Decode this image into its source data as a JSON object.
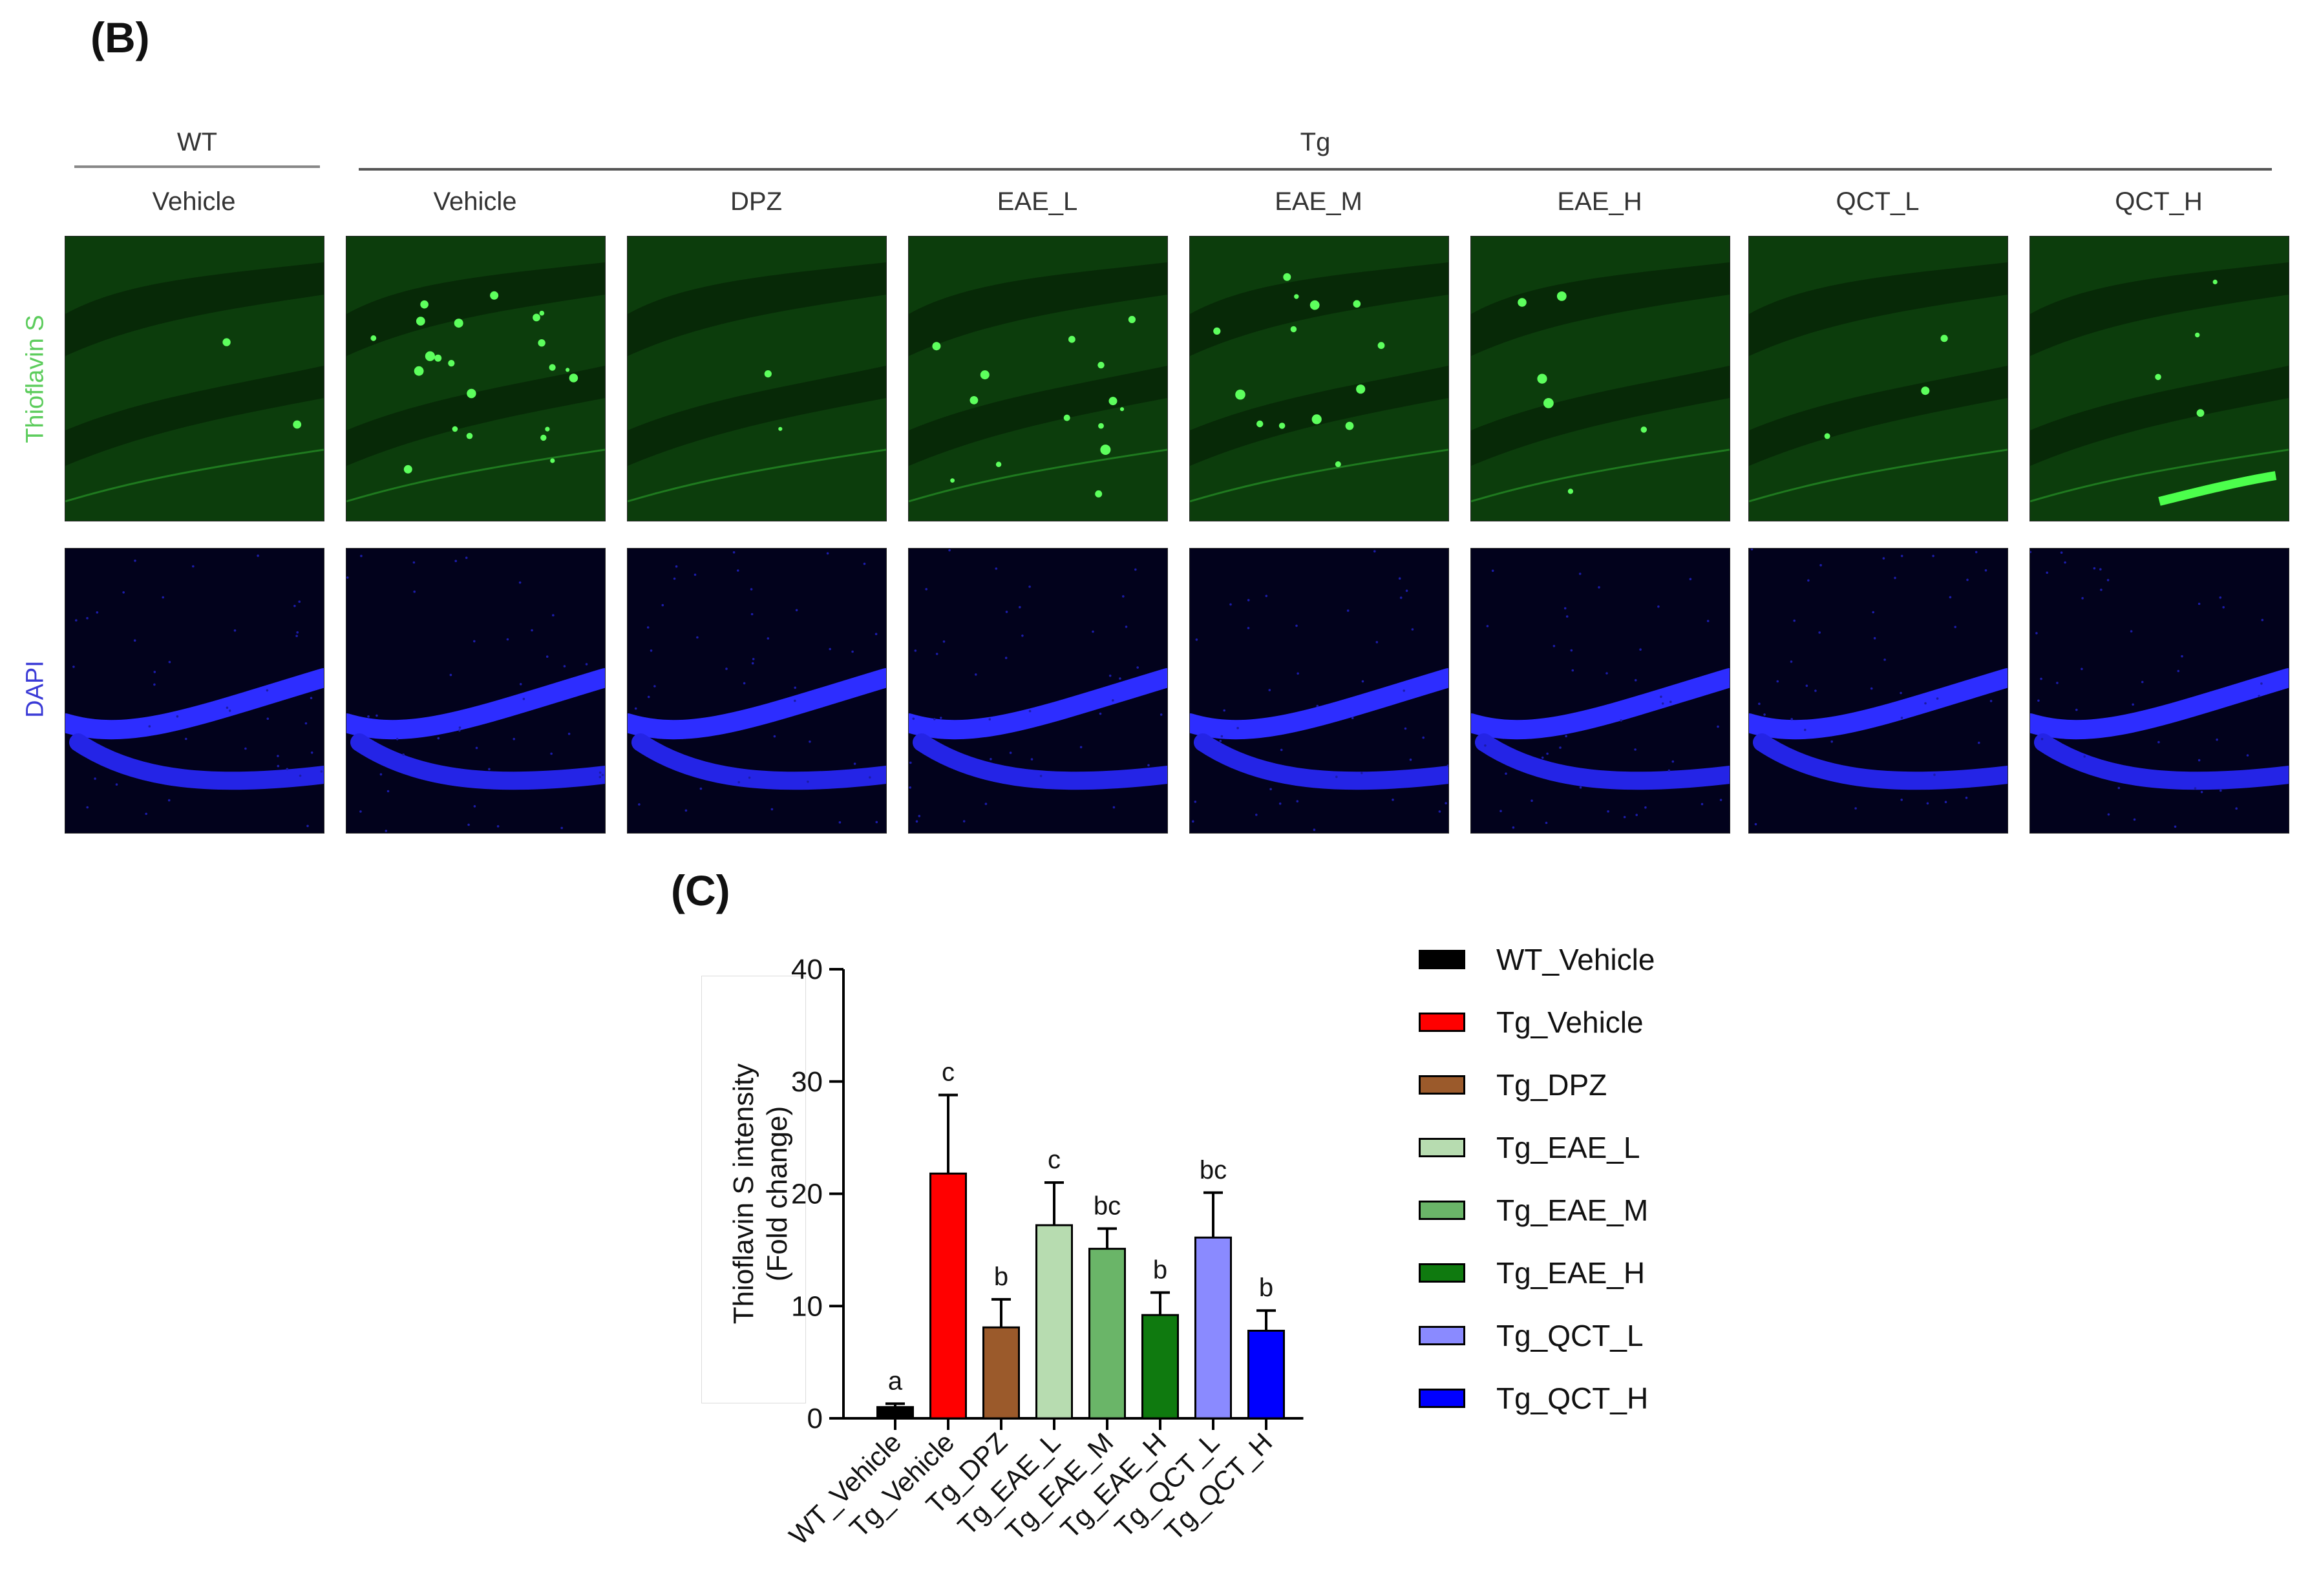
{
  "panel_b": {
    "label": "(B)",
    "groups": [
      {
        "name": "WT"
      },
      {
        "name": "Tg"
      }
    ],
    "columns": [
      "Vehicle",
      "Vehicle",
      "DPZ",
      "EAE_L",
      "EAE_M",
      "EAE_H",
      "QCT_L",
      "QCT_H"
    ],
    "rows": [
      {
        "label": "Thioflavin S",
        "color": "#5ccc5c"
      },
      {
        "label": "DAPI",
        "color": "#3a3ad6"
      }
    ]
  },
  "panel_c": {
    "label": "(C)"
  },
  "chart_data": {
    "type": "bar",
    "ylabel": "Thioflavin S intensity\n(Fold change)",
    "ylabel_lines": [
      "Thioflavin S intensity",
      "(Fold change)"
    ],
    "ylim": [
      0,
      40
    ],
    "yticks": [
      0,
      10,
      20,
      30,
      40
    ],
    "categories": [
      "WT_Vehicle",
      "Tg_Vehicle",
      "Tg_DPZ",
      "Tg_EAE_L",
      "Tg_EAE_M",
      "Tg_EAE_H",
      "Tg_QCT_L",
      "Tg_QCT_H"
    ],
    "values": [
      1.0,
      21.8,
      8.1,
      17.2,
      15.1,
      9.2,
      16.1,
      7.8
    ],
    "errors": [
      0.3,
      7.0,
      2.5,
      3.8,
      1.8,
      2.0,
      4.0,
      1.8
    ],
    "significance": [
      "a",
      "c",
      "b",
      "c",
      "bc",
      "b",
      "bc",
      "b"
    ],
    "colors": [
      "#000000",
      "#ff0000",
      "#9b5a2b",
      "#b7dcb0",
      "#6ab568",
      "#0f7a0f",
      "#8a8aff",
      "#0000ff"
    ],
    "legend": [
      "WT_Vehicle",
      "Tg_Vehicle",
      "Tg_DPZ",
      "Tg_EAE_L",
      "Tg_EAE_M",
      "Tg_EAE_H",
      "Tg_QCT_L",
      "Tg_QCT_H"
    ],
    "legend_position": "right",
    "grid": false
  }
}
